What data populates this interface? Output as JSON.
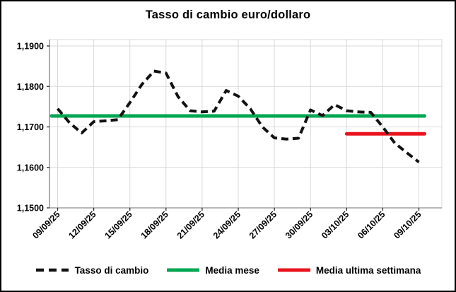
{
  "window": {
    "title": "Tasso di cambio euro/dollaro"
  },
  "chart_data": {
    "type": "line",
    "title": "Tasso di cambio euro/dollaro",
    "x": [
      "09/09/25",
      "10/09/25",
      "11/09/25",
      "12/09/25",
      "13/09/25",
      "14/09/25",
      "15/09/25",
      "16/09/25",
      "17/09/25",
      "18/09/25",
      "19/09/25",
      "20/09/25",
      "21/09/25",
      "22/09/25",
      "23/09/25",
      "24/09/25",
      "25/09/25",
      "26/09/25",
      "27/09/25",
      "28/09/25",
      "29/09/25",
      "30/09/25",
      "01/10/25",
      "02/10/25",
      "03/10/25",
      "04/10/25",
      "05/10/25",
      "06/10/25",
      "07/10/25",
      "08/10/25",
      "09/10/25"
    ],
    "series": [
      {
        "name": "Tasso di cambio",
        "style": "dashed",
        "color": "#121212",
        "values": [
          1.1745,
          1.171,
          1.1685,
          1.1713,
          1.1715,
          1.1718,
          1.176,
          1.1805,
          1.1838,
          1.1833,
          1.1775,
          1.174,
          1.1737,
          1.1739,
          1.179,
          1.1776,
          1.1745,
          1.17,
          1.1673,
          1.167,
          1.1672,
          1.1742,
          1.1728,
          1.1755,
          1.174,
          1.1737,
          1.1736,
          1.17,
          1.166,
          1.1636,
          1.1613
        ]
      },
      {
        "name": "Media mese",
        "style": "solid",
        "color": "#00a651",
        "value": 1.1727,
        "span": "all"
      },
      {
        "name": "Media ultima settimana",
        "style": "solid",
        "color": "#e8131d",
        "value": 1.1683,
        "span": "last7"
      }
    ],
    "ylim": [
      1.15,
      1.19
    ],
    "yticks": [
      {
        "value": 1.19,
        "label": "1,1900"
      },
      {
        "value": 1.18,
        "label": "1,1800"
      },
      {
        "value": 1.17,
        "label": "1,1700"
      },
      {
        "value": 1.16,
        "label": "1,1600"
      },
      {
        "value": 1.15,
        "label": "1,1500"
      }
    ],
    "xticks": [
      {
        "index": 0,
        "label": "09/09/25"
      },
      {
        "index": 3,
        "label": "12/09/25"
      },
      {
        "index": 6,
        "label": "15/09/25"
      },
      {
        "index": 9,
        "label": "18/09/25"
      },
      {
        "index": 12,
        "label": "21/09/25"
      },
      {
        "index": 15,
        "label": "24/09/25"
      },
      {
        "index": 18,
        "label": "27/09/25"
      },
      {
        "index": 21,
        "label": "30/09/25"
      },
      {
        "index": 24,
        "label": "03/10/25"
      },
      {
        "index": 27,
        "label": "06/10/25"
      },
      {
        "index": 30,
        "label": "09/10/25"
      }
    ],
    "grid": true,
    "legend_position": "bottom"
  },
  "legend": {
    "items": [
      {
        "label": "Tasso di cambio",
        "color": "#121212",
        "style": "dashed"
      },
      {
        "label": "Media mese",
        "color": "#00a651",
        "style": "solid"
      },
      {
        "label": "Media ultima settimana",
        "color": "#e8131d",
        "style": "solid"
      }
    ]
  },
  "colors": {
    "grid": "#d9d9d9",
    "axis": "#8c8c8c",
    "tick": "#2a2a2a",
    "text": "#000000"
  }
}
